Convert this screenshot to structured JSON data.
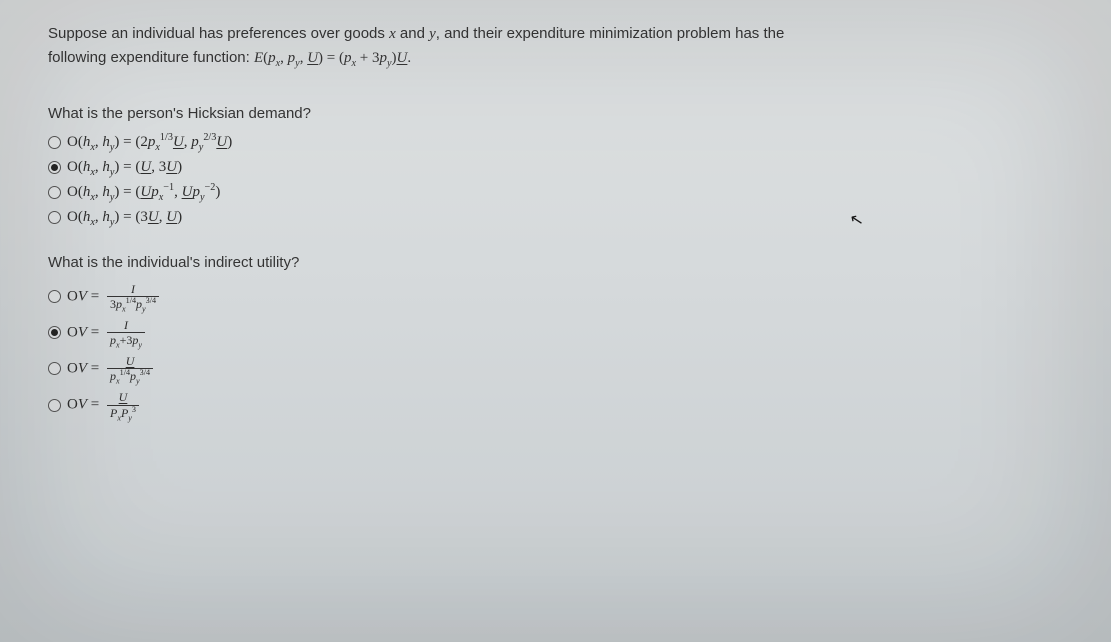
{
  "intro": {
    "line1_pre": "Suppose an individual has preferences over goods ",
    "x": "x",
    "mid1": " and ",
    "y": "y",
    "line1_post": ", and their expenditure minimization problem has the",
    "line2_pre": "following expenditure function: "
  },
  "expenditure": {
    "lhs_E": "E",
    "open": "(",
    "p": "p",
    "sub_x": "x",
    "comma": ", ",
    "sub_y": "y",
    "U": "U",
    "close": ")",
    "eq": " = ",
    "plus": " + 3",
    "period": "."
  },
  "q1": {
    "prompt": "What is the person's Hicksian demand?",
    "options": [
      {
        "selected": false,
        "id": "q1a"
      },
      {
        "selected": true,
        "id": "q1b"
      },
      {
        "selected": false,
        "id": "q1c"
      },
      {
        "selected": false,
        "id": "q1d"
      }
    ]
  },
  "q2": {
    "prompt": "What is the individual's indirect utility?",
    "options": [
      {
        "selected": false,
        "id": "q2a"
      },
      {
        "selected": true,
        "id": "q2b"
      },
      {
        "selected": false,
        "id": "q2c"
      },
      {
        "selected": false,
        "id": "q2d"
      }
    ]
  },
  "sym": {
    "h": "h",
    "O": "O",
    "V": "V",
    "I": "I",
    "three": "3",
    "two": "2",
    "eq": " = ",
    "open": "(",
    "close": ")",
    "comma": ", ",
    "U": "U",
    "p": "p",
    "P": "P",
    "x": "x",
    "y": "y",
    "plus": "+",
    "neg1": "−1",
    "neg2": "−2",
    "frac13": "1/3",
    "frac23": "2/3",
    "frac14": "1/4",
    "frac34": "3/4",
    "sup3": "3"
  },
  "colors": {
    "text": "#2a2a2a",
    "bg_top": "#e6e9ea",
    "bg_bot": "#cfd5d8"
  }
}
